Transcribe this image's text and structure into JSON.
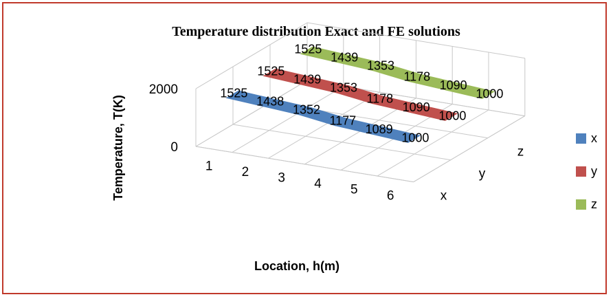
{
  "chart_data": {
    "type": "3d-line",
    "title": "Temperature distribution Exact and FE solutions",
    "xlabel": "Location, h(m)",
    "ylabel": "Temperature, T(K)",
    "categories": [
      "1",
      "2",
      "3",
      "4",
      "5",
      "6"
    ],
    "depth_categories": [
      "x",
      "y",
      "z"
    ],
    "z_ticks": [
      "0",
      "2000"
    ],
    "ylim": [
      0,
      2000
    ],
    "grid": true,
    "legend_position": "right",
    "series": [
      {
        "name": "x",
        "color": "#4f81bd",
        "values": [
          1525,
          1438,
          1352,
          1177,
          1089,
          1000
        ],
        "labels": [
          "1525",
          "1438",
          "1352",
          "1177",
          "1089",
          "1000"
        ]
      },
      {
        "name": "y",
        "color": "#c0504d",
        "values": [
          1525,
          1439,
          1353,
          1178,
          1090,
          1000
        ],
        "labels": [
          "1525",
          "1439",
          "1353",
          "1178",
          "1090",
          "1000"
        ]
      },
      {
        "name": "z",
        "color": "#9bbb59",
        "values": [
          1525,
          1439,
          1353,
          1178,
          1090,
          1000
        ],
        "labels": [
          "1525",
          "1439",
          "1353",
          "1178",
          "1090",
          "1000"
        ]
      }
    ]
  }
}
